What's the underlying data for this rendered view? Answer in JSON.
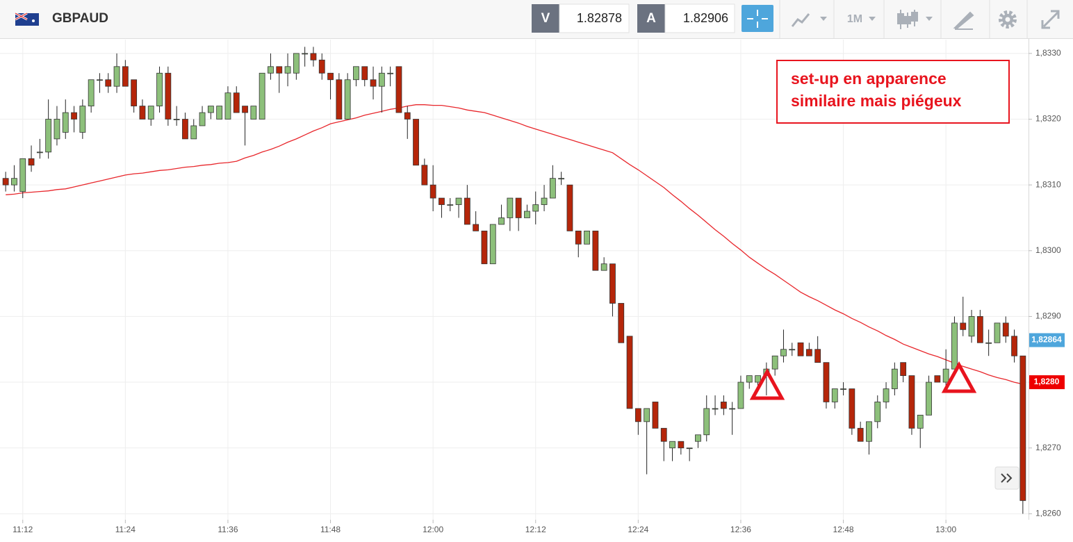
{
  "header": {
    "symbol": "GBPAUD",
    "bid_label": "V",
    "bid": 1.82878,
    "ask_label": "A",
    "ask": 1.82906,
    "timeframe": "1M"
  },
  "chart_data": {
    "type": "candlestick",
    "categories": [
      null,
      null,
      "11:12",
      null,
      null,
      null,
      null,
      null,
      null,
      null,
      null,
      null,
      null,
      null,
      "11:24",
      null,
      null,
      null,
      null,
      null,
      null,
      null,
      null,
      null,
      null,
      null,
      "11:36",
      null,
      null,
      null,
      null,
      null,
      null,
      null,
      null,
      null,
      null,
      null,
      "11:48",
      null,
      null,
      null,
      null,
      null,
      null,
      null,
      null,
      null,
      null,
      null,
      "12:00",
      null,
      null,
      null,
      null,
      null,
      null,
      null,
      null,
      null,
      null,
      null,
      "12:12",
      null,
      null,
      null,
      null,
      null,
      null,
      null,
      null,
      null,
      null,
      null,
      "12:24",
      null,
      null,
      null,
      null,
      null,
      null,
      null,
      null,
      null,
      null,
      null,
      "12:36",
      null,
      null,
      null,
      null,
      null,
      null,
      null,
      null,
      null,
      null,
      null,
      "12:48",
      null,
      null,
      null,
      null,
      null,
      null,
      null,
      null,
      null,
      null,
      null,
      "13:00",
      null,
      null,
      null,
      null,
      null,
      null,
      null,
      null,
      null
    ],
    "open": [
      1.8311,
      1.831,
      1.8309,
      1.8314,
      1.8315,
      1.8315,
      1.8317,
      1.8318,
      1.8321,
      1.8318,
      1.8322,
      1.8326,
      1.8326,
      1.8325,
      1.8328,
      1.8326,
      1.8322,
      1.832,
      1.8322,
      1.8327,
      1.832,
      1.832,
      1.8317,
      1.8319,
      1.8321,
      1.832,
      1.832,
      1.8324,
      1.8322,
      1.832,
      1.832,
      1.8327,
      1.8328,
      1.8327,
      1.8327,
      1.833,
      1.833,
      1.8329,
      1.8327,
      1.8326,
      1.832,
      1.8326,
      1.8328,
      1.8326,
      1.8325,
      1.8327,
      1.8328,
      1.8321,
      1.832,
      1.8313,
      1.831,
      1.8308,
      1.8307,
      1.8307,
      1.8308,
      1.8304,
      1.8303,
      1.8298,
      1.8304,
      1.8305,
      1.8308,
      1.8305,
      1.8306,
      1.8307,
      1.8308,
      1.8311,
      1.831,
      1.8303,
      1.8301,
      1.8303,
      1.8297,
      1.8298,
      1.8292,
      1.8287,
      1.8276,
      1.8274,
      1.8277,
      1.8273,
      1.827,
      1.8271,
      1.827,
      1.8271,
      1.8272,
      1.8276,
      1.8277,
      1.8276,
      1.8276,
      1.828,
      1.828,
      1.8281,
      1.8282,
      1.8284,
      1.8285,
      1.8286,
      1.8285,
      1.8285,
      1.8283,
      1.8277,
      1.8279,
      1.8279,
      1.8273,
      1.8271,
      1.8274,
      1.8277,
      1.8279,
      1.8283,
      1.8281,
      1.8273,
      1.8275,
      1.8281,
      1.828,
      1.8282,
      1.8289,
      1.8287,
      1.829,
      1.8286,
      1.8286,
      1.8289,
      1.8287,
      1.8284
    ],
    "high": [
      1.8312,
      1.8313,
      1.8314,
      1.8316,
      1.8317,
      1.8323,
      1.8322,
      1.8323,
      1.8322,
      1.8323,
      1.8326,
      1.8327,
      1.8327,
      1.833,
      1.8329,
      1.8326,
      1.8323,
      1.8322,
      1.8328,
      1.8328,
      1.8322,
      1.8321,
      1.832,
      1.8322,
      1.8322,
      1.8322,
      1.8325,
      1.8325,
      1.8322,
      1.8322,
      1.8327,
      1.833,
      1.8328,
      1.833,
      1.833,
      1.8331,
      1.8331,
      1.833,
      1.8327,
      1.8327,
      1.8327,
      1.8328,
      1.8328,
      1.8328,
      1.8328,
      1.8328,
      1.8328,
      1.8322,
      1.832,
      1.8314,
      1.8313,
      1.8308,
      1.8308,
      1.8308,
      1.831,
      1.8306,
      1.8303,
      1.8304,
      1.8307,
      1.8308,
      1.8308,
      1.8307,
      1.8309,
      1.831,
      1.8313,
      1.8312,
      1.831,
      1.8303,
      1.8303,
      1.8303,
      1.8299,
      1.8298,
      1.8292,
      1.8287,
      1.8276,
      1.8276,
      1.8277,
      1.8273,
      1.8271,
      1.8271,
      1.827,
      1.8272,
      1.8278,
      1.8278,
      1.8278,
      1.8277,
      1.8281,
      1.8281,
      1.8281,
      1.8283,
      1.8284,
      1.8288,
      1.8286,
      1.8286,
      1.8286,
      1.8287,
      1.8283,
      1.8279,
      1.828,
      1.8279,
      1.8274,
      1.8274,
      1.8278,
      1.828,
      1.8283,
      1.8283,
      1.8281,
      1.8275,
      1.8281,
      1.8281,
      1.8285,
      1.829,
      1.8293,
      1.8291,
      1.8291,
      1.8288,
      1.8289,
      1.829,
      1.8288,
      1.8284
    ],
    "low": [
      1.8309,
      1.8309,
      1.8308,
      1.8312,
      1.8314,
      1.8314,
      1.8316,
      1.8317,
      1.8318,
      1.8317,
      1.8321,
      1.8324,
      1.8324,
      1.8324,
      1.8325,
      1.8321,
      1.832,
      1.8319,
      1.8321,
      1.8319,
      1.8319,
      1.8317,
      1.8317,
      1.8319,
      1.832,
      1.832,
      1.832,
      1.8321,
      1.8316,
      1.832,
      1.832,
      1.8326,
      1.8324,
      1.8325,
      1.8326,
      1.8328,
      1.8328,
      1.8326,
      1.8323,
      1.832,
      1.832,
      1.8325,
      1.8325,
      1.8323,
      1.8321,
      1.8325,
      1.8321,
      1.8317,
      1.8313,
      1.831,
      1.8306,
      1.8305,
      1.8306,
      1.8305,
      1.8304,
      1.8303,
      1.8298,
      1.8298,
      1.8304,
      1.8303,
      1.8303,
      1.8305,
      1.8304,
      1.8306,
      1.8308,
      1.831,
      1.8303,
      1.8299,
      1.8301,
      1.8297,
      1.8297,
      1.829,
      1.8286,
      1.8276,
      1.8272,
      1.8266,
      1.8273,
      1.8268,
      1.8268,
      1.8269,
      1.8268,
      1.827,
      1.8271,
      1.8275,
      1.8275,
      1.8272,
      1.8276,
      1.8279,
      1.8279,
      1.8278,
      1.8281,
      1.8283,
      1.8284,
      1.8284,
      1.8284,
      1.8283,
      1.8276,
      1.8276,
      1.8278,
      1.8272,
      1.8271,
      1.8269,
      1.8273,
      1.8276,
      1.8278,
      1.828,
      1.8272,
      1.827,
      1.8275,
      1.828,
      1.8279,
      1.8282,
      1.8287,
      1.8286,
      1.8286,
      1.8284,
      1.8286,
      1.8286,
      1.8283,
      1.826
    ],
    "close": [
      1.831,
      1.8311,
      1.8314,
      1.8313,
      1.8315,
      1.832,
      1.832,
      1.8321,
      1.832,
      1.8322,
      1.8326,
      1.8326,
      1.8325,
      1.8328,
      1.8325,
      1.8322,
      1.832,
      1.8322,
      1.8327,
      1.832,
      1.832,
      1.8317,
      1.8319,
      1.8321,
      1.8322,
      1.8322,
      1.8324,
      1.8321,
      1.8321,
      1.8322,
      1.8327,
      1.8328,
      1.8327,
      1.8328,
      1.833,
      1.833,
      1.8329,
      1.8327,
      1.8326,
      1.832,
      1.8326,
      1.8328,
      1.8326,
      1.8325,
      1.8327,
      1.8327,
      1.8321,
      1.832,
      1.8313,
      1.831,
      1.8308,
      1.8307,
      1.8307,
      1.8308,
      1.8304,
      1.8303,
      1.8298,
      1.8304,
      1.8305,
      1.8308,
      1.8305,
      1.8306,
      1.8307,
      1.8308,
      1.8311,
      1.8311,
      1.8303,
      1.8301,
      1.8303,
      1.8297,
      1.8298,
      1.8292,
      1.8286,
      1.8276,
      1.8274,
      1.8276,
      1.8273,
      1.8271,
      1.8271,
      1.827,
      1.827,
      1.8272,
      1.8276,
      1.8276,
      1.8276,
      1.8276,
      1.828,
      1.8281,
      1.8281,
      1.8282,
      1.8284,
      1.8285,
      1.8285,
      1.8284,
      1.8284,
      1.8283,
      1.8277,
      1.8279,
      1.8279,
      1.8273,
      1.8271,
      1.8274,
      1.8277,
      1.8279,
      1.8282,
      1.8281,
      1.8273,
      1.8275,
      1.828,
      1.828,
      1.8282,
      1.8289,
      1.8288,
      1.829,
      1.8286,
      1.8286,
      1.8289,
      1.8287,
      1.8284,
      1.8262
    ],
    "up_color": "#8dc07b",
    "down_color": "#b5260a",
    "moving_average": {
      "color": "#e8262b",
      "values": [
        1.83085,
        1.83086,
        1.83088,
        1.83089,
        1.8309,
        1.83091,
        1.83093,
        1.83094,
        1.83097,
        1.831,
        1.83103,
        1.83106,
        1.83109,
        1.83112,
        1.83115,
        1.83117,
        1.83118,
        1.8312,
        1.83122,
        1.83123,
        1.83125,
        1.83127,
        1.83128,
        1.8313,
        1.83131,
        1.83133,
        1.83134,
        1.83136,
        1.83141,
        1.83145,
        1.8315,
        1.83154,
        1.83159,
        1.83165,
        1.8317,
        1.83176,
        1.83182,
        1.83187,
        1.83193,
        1.83196,
        1.83199,
        1.83202,
        1.83206,
        1.83209,
        1.83212,
        1.83215,
        1.83217,
        1.8322,
        1.83222,
        1.83222,
        1.83221,
        1.83221,
        1.83219,
        1.83217,
        1.83214,
        1.83212,
        1.8321,
        1.83206,
        1.83202,
        1.83198,
        1.83194,
        1.83189,
        1.83185,
        1.83181,
        1.83177,
        1.83173,
        1.83169,
        1.83165,
        1.83161,
        1.83157,
        1.83153,
        1.83149,
        1.8314,
        1.83131,
        1.83123,
        1.83114,
        1.83105,
        1.83096,
        1.83085,
        1.83075,
        1.83064,
        1.83054,
        1.83043,
        1.83032,
        1.83022,
        1.83011,
        1.83001,
        1.8299,
        1.82981,
        1.82972,
        1.82964,
        1.82955,
        1.82946,
        1.82937,
        1.8293,
        1.82924,
        1.82917,
        1.8291,
        1.82904,
        1.82897,
        1.82891,
        1.82884,
        1.82878,
        1.82871,
        1.82865,
        1.82858,
        1.82853,
        1.82848,
        1.82843,
        1.82839,
        1.82834,
        1.82829,
        1.82824,
        1.8282,
        1.82816,
        1.82811,
        1.82807,
        1.82804,
        1.828,
        1.82797
      ]
    },
    "ylim": [
      1.82594,
      1.83321
    ],
    "yticks": [
      {
        "value": 1.826,
        "label": "1,8260"
      },
      {
        "value": 1.827,
        "label": "1,8270"
      },
      {
        "value": 1.828,
        "label": "1,8280"
      },
      {
        "value": 1.829,
        "label": "1,8290"
      },
      {
        "value": 1.83,
        "label": "1,8300"
      },
      {
        "value": 1.831,
        "label": "1,8310"
      },
      {
        "value": 1.832,
        "label": "1,8320"
      },
      {
        "value": 1.833,
        "label": "1,8330"
      }
    ],
    "price_labels": [
      {
        "value": 1.82864,
        "label": "1,82864",
        "color": "#4ea6dc"
      },
      {
        "value": 1.828,
        "label": "1,8280",
        "color": "#ee0000"
      }
    ],
    "annotation": [
      "set-up en apparence",
      "similaire mais piégeux"
    ],
    "grid": true
  }
}
